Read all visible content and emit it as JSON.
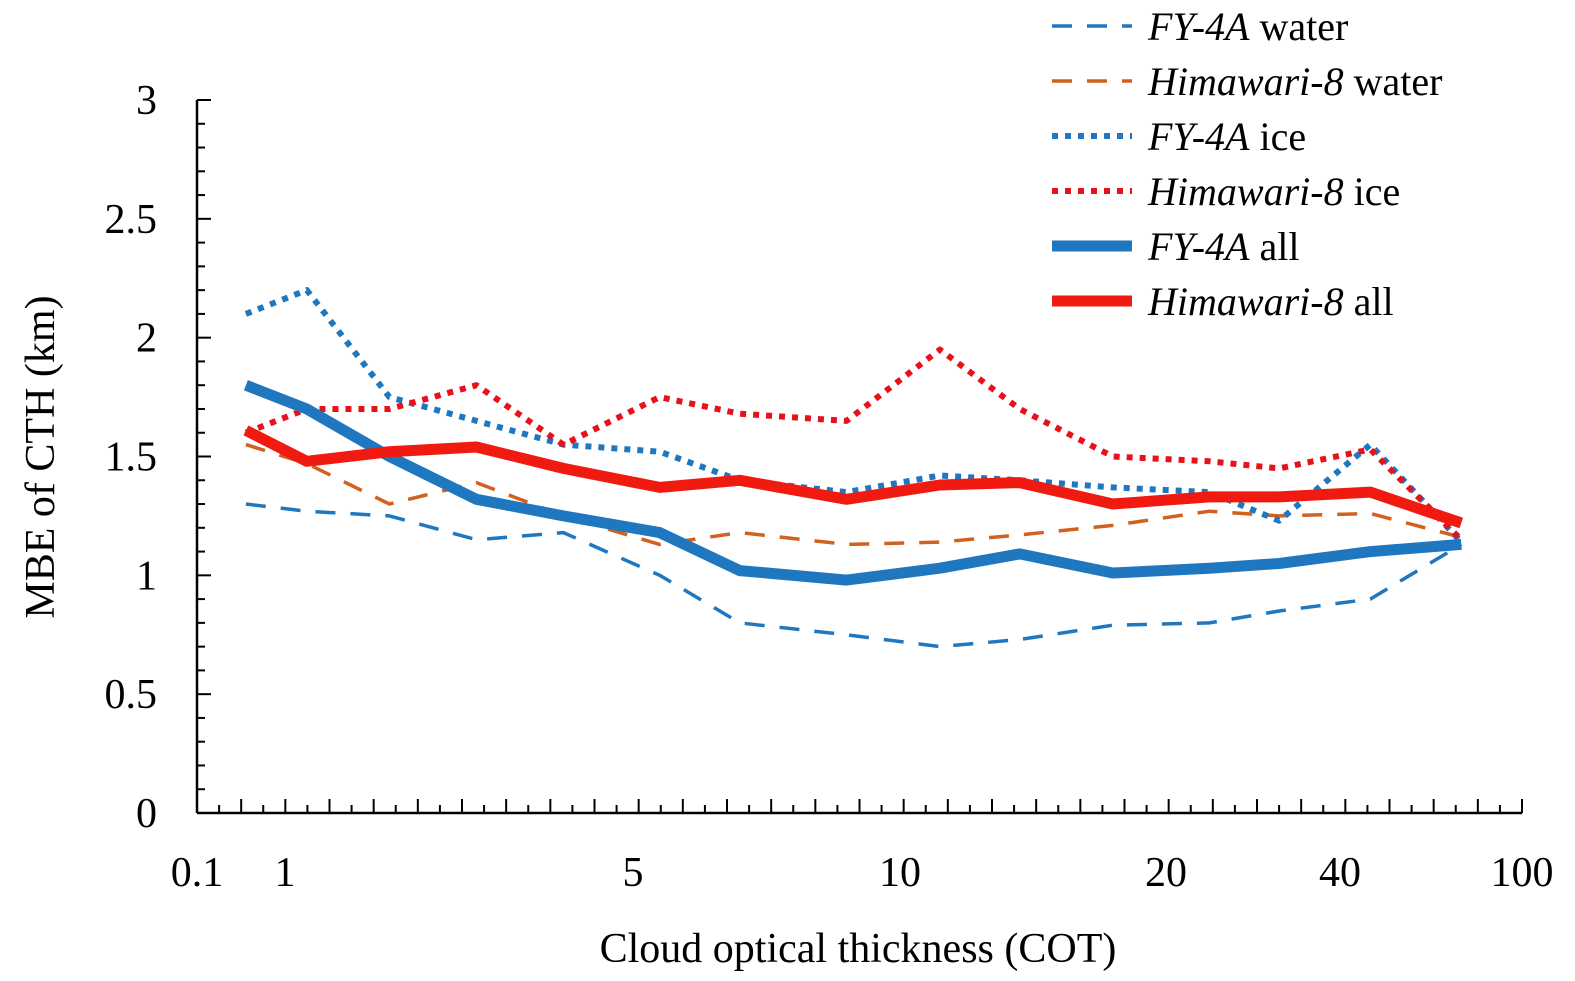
{
  "chart_data": {
    "type": "line",
    "xlabel": "Cloud optical thickness (COT)",
    "ylabel": "MBE of CTH (km)",
    "ylim": [
      0,
      3
    ],
    "yticks": [
      "0",
      "0.5",
      "1",
      "1.5",
      "2",
      "2.5",
      "3"
    ],
    "xticks": [
      "0.1",
      "1",
      "5",
      "10",
      "20",
      "40",
      "100"
    ],
    "x_scale": "categorical-like (labelled ticks 0.1, 1, 5, 10, 20, 40, 100)",
    "legend_placement": "top-right",
    "grid": false,
    "series": [
      {
        "label_italic": "FY-4A",
        "label_plain": " water",
        "color": "#1f77c0",
        "style": "dashed",
        "x": [
          0.6,
          1.25,
          2.2,
          3.2,
          4.2,
          5.5,
          7,
          9,
          11.5,
          14.5,
          18,
          25,
          33,
          50,
          80
        ],
        "values": [
          1.3,
          1.27,
          1.25,
          1.15,
          1.18,
          1.0,
          0.8,
          0.75,
          0.7,
          0.73,
          0.79,
          0.8,
          0.85,
          0.9,
          1.13
        ]
      },
      {
        "label_italic": "Himawari-8",
        "label_plain": " water",
        "color": "#d2601e",
        "style": "dashed",
        "x": [
          0.6,
          1.25,
          2.2,
          3.2,
          4.2,
          5.5,
          7,
          9,
          11.5,
          14.5,
          18,
          25,
          33,
          50,
          80
        ],
        "values": [
          1.55,
          1.47,
          1.3,
          1.39,
          1.25,
          1.13,
          1.18,
          1.13,
          1.14,
          1.17,
          1.21,
          1.27,
          1.25,
          1.26,
          1.16
        ]
      },
      {
        "label_italic": "FY-4A",
        "label_plain": " ice",
        "color": "#1f77c0",
        "style": "dotted",
        "x": [
          0.6,
          1.25,
          2.2,
          3.2,
          4.2,
          5.5,
          7,
          9,
          11.5,
          14.5,
          18,
          25,
          33,
          50,
          80
        ],
        "values": [
          2.1,
          2.2,
          1.75,
          1.65,
          1.55,
          1.52,
          1.4,
          1.35,
          1.42,
          1.4,
          1.37,
          1.35,
          1.23,
          1.55,
          1.14
        ]
      },
      {
        "label_italic": "Himawari-8",
        "label_plain": " ice",
        "color": "#e8101a",
        "style": "dotted",
        "x": [
          0.6,
          1.25,
          2.2,
          3.2,
          4.2,
          5.5,
          7,
          9,
          11.5,
          14.5,
          18,
          25,
          33,
          50,
          80
        ],
        "values": [
          1.6,
          1.7,
          1.7,
          1.8,
          1.55,
          1.75,
          1.68,
          1.65,
          1.95,
          1.7,
          1.5,
          1.48,
          1.45,
          1.53,
          1.15
        ]
      },
      {
        "label_italic": "FY-4A",
        "label_plain": " all",
        "color": "#1f77c0",
        "style": "solid",
        "x": [
          0.6,
          1.25,
          2.2,
          3.2,
          4.2,
          5.5,
          7,
          9,
          11.5,
          14.5,
          18,
          25,
          33,
          50,
          80
        ],
        "values": [
          1.8,
          1.7,
          1.5,
          1.32,
          1.25,
          1.18,
          1.02,
          0.98,
          1.03,
          1.09,
          1.01,
          1.03,
          1.05,
          1.1,
          1.13
        ]
      },
      {
        "label_italic": "Himawari-8",
        "label_plain": " all",
        "color": "#f11a10",
        "style": "solid",
        "x": [
          0.6,
          1.25,
          2.2,
          3.2,
          4.2,
          5.5,
          7,
          9,
          11.5,
          14.5,
          18,
          25,
          33,
          50,
          80
        ],
        "values": [
          1.61,
          1.48,
          1.52,
          1.54,
          1.45,
          1.37,
          1.4,
          1.32,
          1.38,
          1.39,
          1.3,
          1.33,
          1.33,
          1.35,
          1.22
        ]
      }
    ]
  }
}
